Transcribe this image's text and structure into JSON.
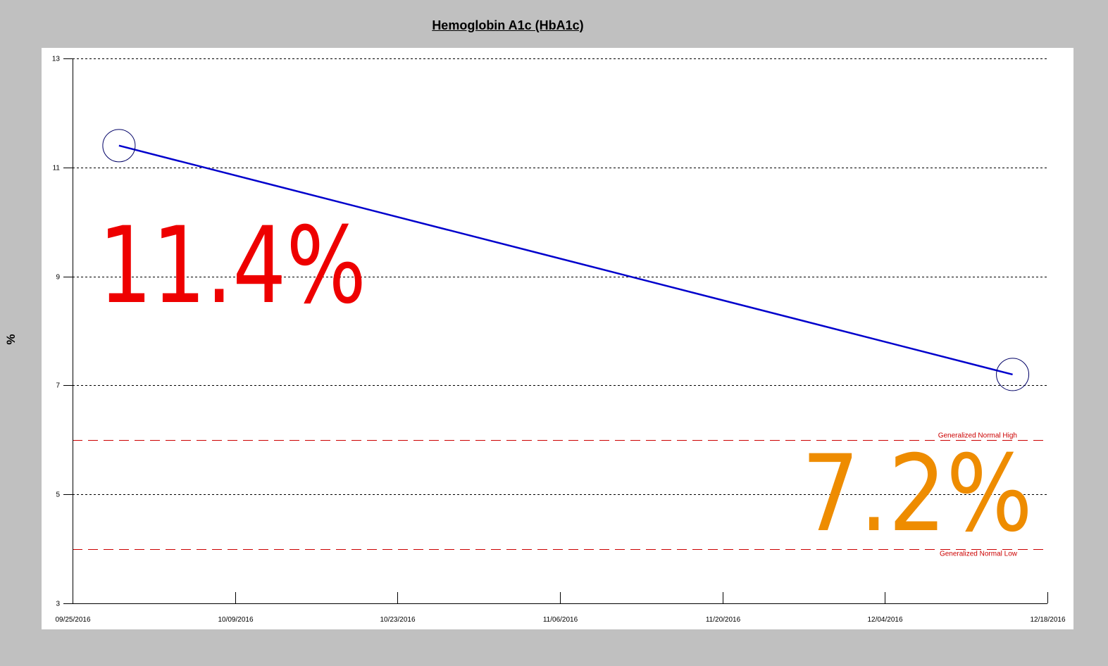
{
  "chart_data": {
    "type": "line",
    "title": "Hemoglobin A1c (HbA1c)",
    "xlabel": "",
    "ylabel": "%",
    "x_ticks": [
      "09/25/2016",
      "10/09/2016",
      "10/23/2016",
      "11/06/2016",
      "11/20/2016",
      "12/04/2016",
      "12/18/2016"
    ],
    "xlim": [
      "2016-09-25",
      "2016-12-18"
    ],
    "ylim": [
      3,
      13
    ],
    "y_ticks": [
      3,
      5,
      7,
      9,
      11,
      13
    ],
    "grid": true,
    "series": [
      {
        "color": "#0000cc",
        "marker": "open-circle",
        "points": [
          {
            "x": "2016-09-29",
            "y": 11.4
          },
          {
            "x": "2016-12-15",
            "y": 7.2
          }
        ]
      }
    ],
    "reference_lines": [
      {
        "label": "Generalized Normal High",
        "y": 6,
        "color": "#cc0000"
      },
      {
        "label": "Generalized Normal Low",
        "y": 4,
        "color": "#cc0000"
      }
    ],
    "annotations": [
      {
        "text": "11.4%",
        "color": "#ee0000"
      },
      {
        "text": "7.2%",
        "color": "#ee8c00"
      }
    ]
  }
}
